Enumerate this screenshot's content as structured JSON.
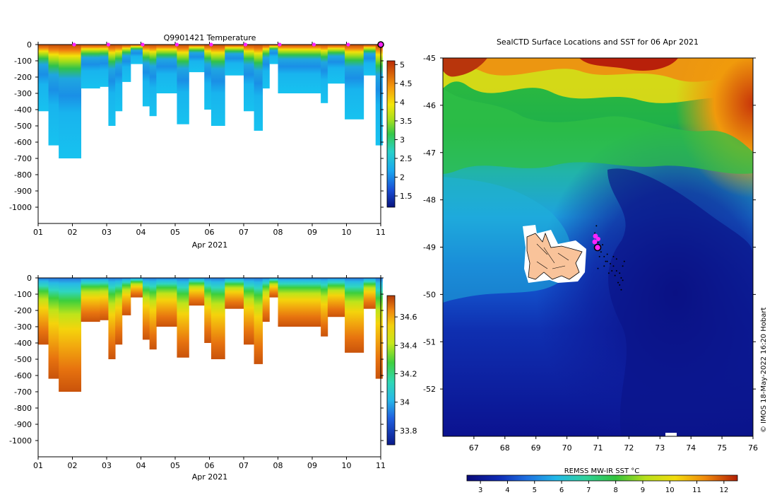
{
  "chart_data": [
    {
      "type": "heatmap",
      "id": "temperature-section",
      "title": "Q9901421  Temperature",
      "xlabel": "Apr 2021",
      "x_ticks": [
        "01",
        "02",
        "03",
        "04",
        "05",
        "06",
        "07",
        "08",
        "09",
        "10",
        "11"
      ],
      "y_ticks": [
        "0",
        "-100",
        "-200",
        "-300",
        "-400",
        "-500",
        "-600",
        "-700",
        "-800",
        "-900",
        "-1000"
      ],
      "ylim": [
        -1100,
        0
      ],
      "colorbar": {
        "ticks": [
          "1.5",
          "2",
          "2.5",
          "3",
          "3.5",
          "4",
          "4.5",
          "5"
        ],
        "range": [
          1.2,
          5.1
        ]
      },
      "profile_marker_days": [
        2,
        3,
        4,
        5,
        6,
        7,
        8,
        9,
        10
      ],
      "last_position_day": 11
    },
    {
      "type": "heatmap",
      "id": "salinity-section",
      "xlabel": "Apr 2021",
      "x_ticks": [
        "01",
        "02",
        "03",
        "04",
        "05",
        "06",
        "07",
        "08",
        "09",
        "10",
        "11"
      ],
      "y_ticks": [
        "0",
        "-100",
        "-200",
        "-300",
        "-400",
        "-500",
        "-600",
        "-700",
        "-800",
        "-900",
        "-1000"
      ],
      "ylim": [
        -1100,
        0
      ],
      "colorbar": {
        "ticks": [
          "33.8",
          "34",
          "34.2",
          "34.4",
          "34.6"
        ],
        "range": [
          33.7,
          34.75
        ]
      }
    },
    {
      "type": "heatmap",
      "id": "sst-map",
      "title": "SealCTD Surface Locations and SST for 06 Apr 2021",
      "x_ticks": [
        "67",
        "68",
        "69",
        "70",
        "71",
        "72",
        "73",
        "74",
        "75",
        "76"
      ],
      "y_ticks": [
        "-45",
        "-46",
        "-47",
        "-48",
        "-49",
        "-50",
        "-51",
        "-52"
      ],
      "xlim": [
        66,
        76
      ],
      "ylim": [
        -53,
        -45
      ],
      "colorbar_label": "REMSS MW-IR SST °C",
      "colorbar": {
        "ticks": [
          "3",
          "4",
          "5",
          "6",
          "7",
          "8",
          "9",
          "10",
          "11",
          "12"
        ],
        "range": [
          2.5,
          12.5
        ]
      }
    }
  ],
  "credit": "© IMOS 18-May-2022 16:20 Hobart"
}
